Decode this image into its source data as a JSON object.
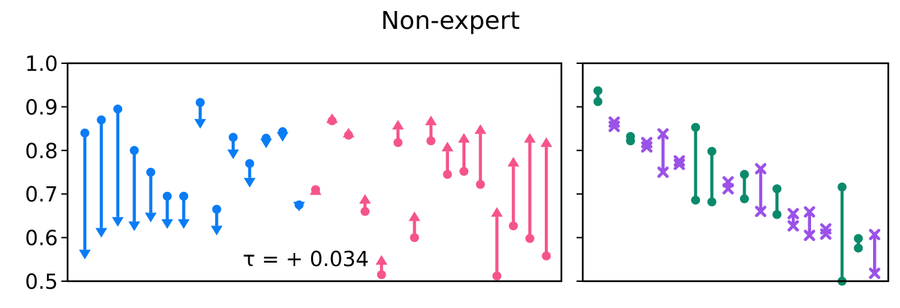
{
  "figure": {
    "title": "Non-expert",
    "annotation": "τ = + 0.034",
    "colors": {
      "blue": "#0a7cf5",
      "pink": "#f5548b",
      "green": "#0a8a6a",
      "purple": "#9b51e8"
    }
  },
  "chart_data": [
    {
      "type": "dumbbell-arrow",
      "panel": "left",
      "ylim": [
        0.5,
        1.0
      ],
      "yticks": [
        "0.5",
        "0.6",
        "0.7",
        "0.8",
        "0.9",
        "1.0"
      ],
      "grid": false,
      "legend": "none",
      "series": [
        {
          "color": "blue",
          "direction": "down",
          "items": [
            {
              "x": 1,
              "from": 0.84,
              "to": 0.55
            },
            {
              "x": 2,
              "from": 0.87,
              "to": 0.6
            },
            {
              "x": 3,
              "from": 0.895,
              "to": 0.625
            },
            {
              "x": 4,
              "from": 0.8,
              "to": 0.615
            },
            {
              "x": 5,
              "from": 0.75,
              "to": 0.635
            },
            {
              "x": 6,
              "from": 0.695,
              "to": 0.62
            },
            {
              "x": 7,
              "from": 0.695,
              "to": 0.62
            },
            {
              "x": 8,
              "from": 0.91,
              "to": 0.85
            },
            {
              "x": 9,
              "from": 0.665,
              "to": 0.605
            },
            {
              "x": 10,
              "from": 0.83,
              "to": 0.78
            },
            {
              "x": 11,
              "from": 0.77,
              "to": 0.715
            },
            {
              "x": 12,
              "from": 0.828,
              "to": 0.805
            },
            {
              "x": 13,
              "from": 0.843,
              "to": 0.82
            },
            {
              "x": 14,
              "from": 0.675,
              "to": 0.66
            }
          ]
        },
        {
          "color": "pink",
          "direction": "up",
          "items": [
            {
              "x": 15,
              "from": 0.71,
              "to": 0.72
            },
            {
              "x": 16,
              "from": 0.868,
              "to": 0.885
            },
            {
              "x": 17,
              "from": 0.835,
              "to": 0.852
            },
            {
              "x": 18,
              "from": 0.66,
              "to": 0.7
            },
            {
              "x": 19,
              "from": 0.515,
              "to": 0.56
            },
            {
              "x": 20,
              "from": 0.818,
              "to": 0.87
            },
            {
              "x": 21,
              "from": 0.6,
              "to": 0.66
            },
            {
              "x": 22,
              "from": 0.822,
              "to": 0.88
            },
            {
              "x": 23,
              "from": 0.745,
              "to": 0.82
            },
            {
              "x": 24,
              "from": 0.752,
              "to": 0.84
            },
            {
              "x": 25,
              "from": 0.722,
              "to": 0.86
            },
            {
              "x": 26,
              "from": 0.512,
              "to": 0.67
            },
            {
              "x": 27,
              "from": 0.627,
              "to": 0.785
            },
            {
              "x": 28,
              "from": 0.598,
              "to": 0.84
            },
            {
              "x": 29,
              "from": 0.558,
              "to": 0.83
            }
          ]
        }
      ]
    },
    {
      "type": "dumbbell",
      "panel": "right",
      "ylim": [
        0.5,
        1.0
      ],
      "grid": false,
      "legend": "none",
      "items": [
        {
          "x": 1,
          "high": 0.937,
          "low": 0.912,
          "color": "green",
          "marker": "circle"
        },
        {
          "x": 2,
          "high": 0.865,
          "low": 0.855,
          "color": "purple",
          "marker": "x"
        },
        {
          "x": 3,
          "high": 0.832,
          "low": 0.822,
          "color": "green",
          "marker": "circle"
        },
        {
          "x": 4,
          "high": 0.818,
          "low": 0.808,
          "color": "purple",
          "marker": "x"
        },
        {
          "x": 5,
          "high": 0.838,
          "low": 0.75,
          "color": "purple",
          "marker": "x"
        },
        {
          "x": 6,
          "high": 0.776,
          "low": 0.768,
          "color": "purple",
          "marker": "x"
        },
        {
          "x": 7,
          "high": 0.853,
          "low": 0.686,
          "color": "green",
          "marker": "circle"
        },
        {
          "x": 8,
          "high": 0.798,
          "low": 0.682,
          "color": "green",
          "marker": "circle"
        },
        {
          "x": 9,
          "high": 0.728,
          "low": 0.712,
          "color": "purple",
          "marker": "x"
        },
        {
          "x": 10,
          "high": 0.745,
          "low": 0.689,
          "color": "green",
          "marker": "circle"
        },
        {
          "x": 11,
          "high": 0.758,
          "low": 0.66,
          "color": "purple",
          "marker": "x"
        },
        {
          "x": 12,
          "high": 0.712,
          "low": 0.653,
          "color": "green",
          "marker": "circle"
        },
        {
          "x": 13,
          "high": 0.655,
          "low": 0.627,
          "color": "purple",
          "marker": "x"
        },
        {
          "x": 14,
          "high": 0.659,
          "low": 0.605,
          "color": "purple",
          "marker": "x"
        },
        {
          "x": 15,
          "high": 0.62,
          "low": 0.608,
          "color": "purple",
          "marker": "x"
        },
        {
          "x": 16,
          "high": 0.716,
          "low": 0.5,
          "color": "green",
          "marker": "circle"
        },
        {
          "x": 17,
          "high": 0.598,
          "low": 0.576,
          "color": "green",
          "marker": "circle"
        },
        {
          "x": 18,
          "high": 0.607,
          "low": 0.518,
          "color": "purple",
          "marker": "x"
        }
      ]
    }
  ]
}
